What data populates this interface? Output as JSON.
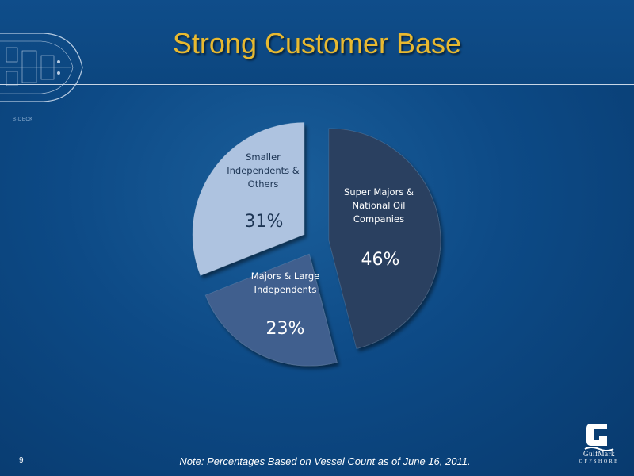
{
  "slide": {
    "title": "Strong Customer Base",
    "note": "Note: Percentages Based on Vessel Count as of June 16, 2011.",
    "page_number": "9",
    "deck_label": "B-DECK"
  },
  "logo": {
    "name": "GulfMark",
    "sub": "OFFSHORE",
    "icon": "gulfmark-g-logo-icon"
  },
  "colors": {
    "title": "#e8b930",
    "background": "#0d4a86",
    "slice_super_majors": "#2a3f61",
    "slice_majors": "#3f5f8e",
    "slice_smaller": "#aec3e0"
  },
  "chart_data": {
    "type": "pie",
    "exploded": true,
    "slices": [
      {
        "label_lines": [
          "Super Majors &",
          "National Oil",
          "Companies"
        ],
        "value": 46,
        "value_label": "46%"
      },
      {
        "label_lines": [
          "Majors & Large",
          "Independents"
        ],
        "value": 23,
        "value_label": "23%"
      },
      {
        "label_lines": [
          "Smaller",
          "Independents &",
          "Others"
        ],
        "value": 31,
        "value_label": "31%"
      }
    ]
  }
}
